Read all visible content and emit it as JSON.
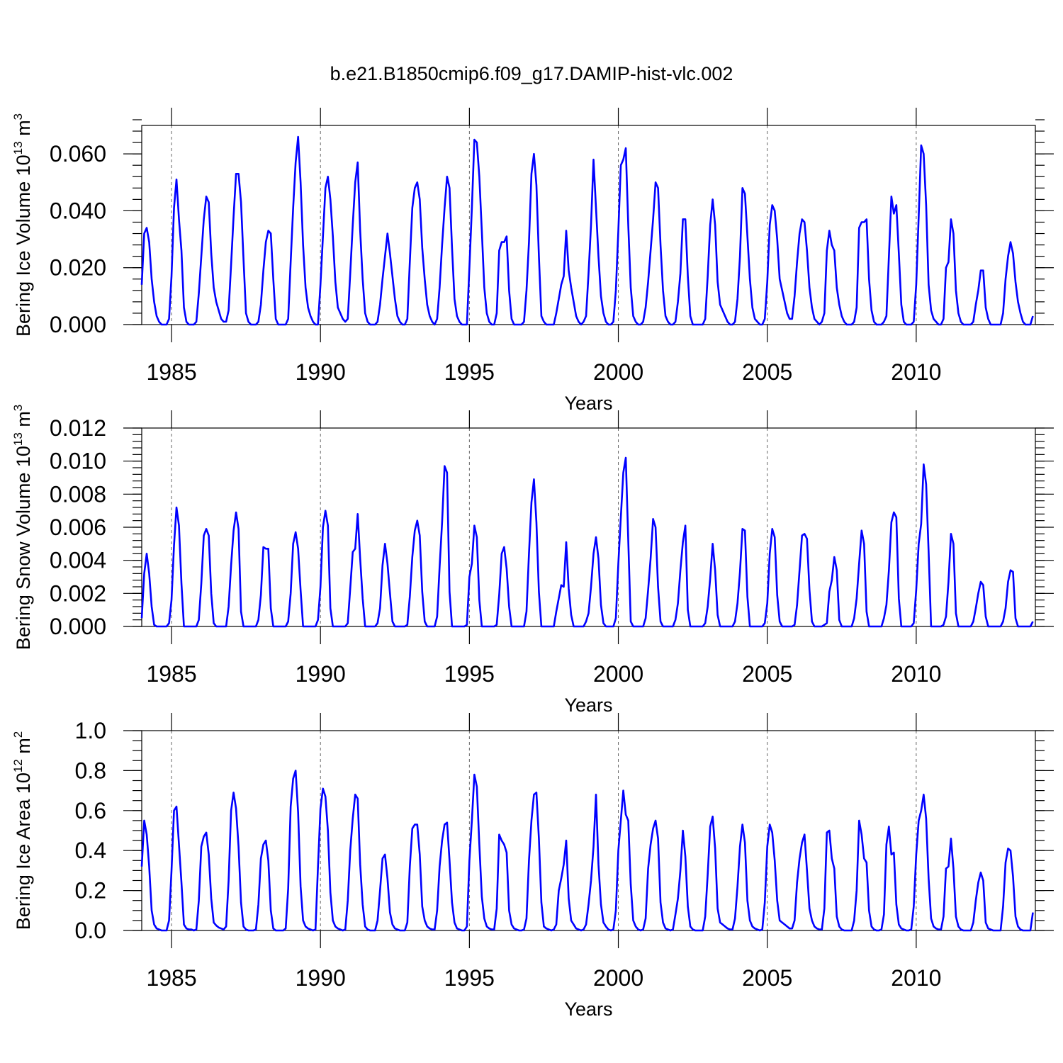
{
  "title": "b.e21.B1850cmip6.f09_g17.DAMIP-hist-vlc.002",
  "chart_data": [
    {
      "type": "line",
      "name": "ice-volume",
      "ylabel": "Bering Ice Volume 10",
      "ylabel_exp": "13",
      "ylabel_unit": " m",
      "ylabel_unit_exp": "3",
      "xlabel": "Years",
      "xlim": [
        1984.0,
        2014.0
      ],
      "ylim": [
        0.0,
        0.07
      ],
      "x_ticks": [
        1985,
        1990,
        1995,
        2000,
        2005,
        2010
      ],
      "x_tick_labels": [
        "1985",
        "1990",
        "1995",
        "2000",
        "2005",
        "2010"
      ],
      "y_ticks": [
        0.0,
        0.02,
        0.04,
        0.06
      ],
      "y_tick_labels": [
        "0.000",
        "0.020",
        "0.040",
        "0.060"
      ],
      "y_minor_step": 0.004,
      "grid": "dashed vertical at major x ticks",
      "color": "#0000ff",
      "series_points_per_year": 12,
      "start_year": 1984.0,
      "values": [
        0.014,
        0.032,
        0.034,
        0.029,
        0.016,
        0.008,
        0.003,
        0.001,
        0.0,
        0.0,
        0.0,
        0.002,
        0.017,
        0.041,
        0.051,
        0.037,
        0.026,
        0.006,
        0.001,
        0.0,
        0.0,
        0.0,
        0.001,
        0.011,
        0.024,
        0.037,
        0.045,
        0.043,
        0.025,
        0.013,
        0.008,
        0.005,
        0.002,
        0.001,
        0.001,
        0.005,
        0.021,
        0.038,
        0.053,
        0.053,
        0.043,
        0.023,
        0.004,
        0.001,
        0.0,
        0.0,
        0.0,
        0.001,
        0.007,
        0.019,
        0.029,
        0.033,
        0.032,
        0.016,
        0.002,
        0.0,
        0.0,
        0.0,
        0.0,
        0.002,
        0.022,
        0.041,
        0.057,
        0.066,
        0.05,
        0.028,
        0.013,
        0.006,
        0.003,
        0.001,
        0.0,
        0.0,
        0.014,
        0.031,
        0.048,
        0.052,
        0.044,
        0.031,
        0.015,
        0.006,
        0.004,
        0.002,
        0.001,
        0.002,
        0.018,
        0.035,
        0.05,
        0.057,
        0.033,
        0.016,
        0.004,
        0.001,
        0.0,
        0.0,
        0.0,
        0.001,
        0.007,
        0.016,
        0.024,
        0.032,
        0.025,
        0.017,
        0.009,
        0.003,
        0.001,
        0.0,
        0.0,
        0.002,
        0.022,
        0.041,
        0.048,
        0.05,
        0.044,
        0.027,
        0.016,
        0.007,
        0.003,
        0.001,
        0.0,
        0.002,
        0.013,
        0.028,
        0.041,
        0.052,
        0.048,
        0.027,
        0.009,
        0.003,
        0.001,
        0.0,
        0.0,
        0.0,
        0.02,
        0.041,
        0.065,
        0.064,
        0.052,
        0.033,
        0.013,
        0.004,
        0.001,
        0.0,
        0.0,
        0.004,
        0.026,
        0.029,
        0.029,
        0.031,
        0.012,
        0.002,
        0.0,
        0.0,
        0.0,
        0.0,
        0.001,
        0.012,
        0.029,
        0.053,
        0.06,
        0.049,
        0.024,
        0.003,
        0.001,
        0.0,
        0.0,
        0.0,
        0.0,
        0.004,
        0.009,
        0.014,
        0.017,
        0.033,
        0.019,
        0.013,
        0.008,
        0.003,
        0.001,
        0.0,
        0.001,
        0.003,
        0.018,
        0.035,
        0.058,
        0.041,
        0.024,
        0.01,
        0.004,
        0.001,
        0.0,
        0.0,
        0.001,
        0.012,
        0.033,
        0.056,
        0.058,
        0.062,
        0.035,
        0.013,
        0.003,
        0.001,
        0.0,
        0.0,
        0.001,
        0.006,
        0.015,
        0.026,
        0.037,
        0.05,
        0.048,
        0.028,
        0.012,
        0.003,
        0.001,
        0.0,
        0.0,
        0.001,
        0.008,
        0.018,
        0.037,
        0.037,
        0.017,
        0.003,
        0.0,
        0.0,
        0.0,
        0.0,
        0.0,
        0.002,
        0.017,
        0.035,
        0.044,
        0.035,
        0.015,
        0.007,
        0.005,
        0.003,
        0.001,
        0.0,
        0.0,
        0.001,
        0.009,
        0.024,
        0.048,
        0.046,
        0.031,
        0.016,
        0.006,
        0.002,
        0.001,
        0.0,
        0.0,
        0.002,
        0.015,
        0.035,
        0.042,
        0.04,
        0.03,
        0.016,
        0.012,
        0.008,
        0.004,
        0.002,
        0.002,
        0.01,
        0.022,
        0.032,
        0.037,
        0.036,
        0.026,
        0.013,
        0.006,
        0.002,
        0.001,
        0.0,
        0.001,
        0.004,
        0.026,
        0.033,
        0.028,
        0.026,
        0.013,
        0.007,
        0.003,
        0.001,
        0.0,
        0.0,
        0.0,
        0.001,
        0.006,
        0.034,
        0.036,
        0.036,
        0.037,
        0.016,
        0.005,
        0.001,
        0.0,
        0.0,
        0.0,
        0.001,
        0.003,
        0.024,
        0.045,
        0.039,
        0.042,
        0.025,
        0.007,
        0.001,
        0.0,
        0.0,
        0.0,
        0.001,
        0.014,
        0.038,
        0.063,
        0.06,
        0.042,
        0.014,
        0.005,
        0.002,
        0.001,
        0.0,
        0.0,
        0.002,
        0.02,
        0.022,
        0.037,
        0.032,
        0.012,
        0.004,
        0.001,
        0.0,
        0.0,
        0.0,
        0.0,
        0.001,
        0.007,
        0.012,
        0.019,
        0.019,
        0.006,
        0.002,
        0.0,
        0.0,
        0.0,
        0.0,
        0.0,
        0.004,
        0.016,
        0.024,
        0.029,
        0.025,
        0.015,
        0.008,
        0.004,
        0.001,
        0.0,
        0.0,
        0.0,
        0.003
      ]
    },
    {
      "type": "line",
      "name": "snow-volume",
      "ylabel": "Bering Snow Volume 10",
      "ylabel_exp": "13",
      "ylabel_unit": " m",
      "ylabel_unit_exp": "3",
      "xlabel": "Years",
      "xlim": [
        1984.0,
        2014.0
      ],
      "ylim": [
        0.0,
        0.012
      ],
      "x_ticks": [
        1985,
        1990,
        1995,
        2000,
        2005,
        2010
      ],
      "x_tick_labels": [
        "1985",
        "1990",
        "1995",
        "2000",
        "2005",
        "2010"
      ],
      "y_ticks": [
        0.0,
        0.002,
        0.004,
        0.006,
        0.008,
        0.01,
        0.012
      ],
      "y_tick_labels": [
        "0.000",
        "0.002",
        "0.004",
        "0.006",
        "0.008",
        "0.010",
        "0.012"
      ],
      "y_minor_step": 0.0004,
      "grid": "dashed vertical at major x ticks",
      "color": "#0000ff",
      "series_points_per_year": 12,
      "start_year": 1984.0,
      "values": [
        0.0005,
        0.0032,
        0.0044,
        0.0032,
        0.0012,
        0.0001,
        0.0,
        0.0,
        0.0,
        0.0,
        0.0,
        0.0002,
        0.0016,
        0.0049,
        0.0072,
        0.0061,
        0.0026,
        0.0,
        0.0,
        0.0,
        0.0,
        0.0,
        0.0,
        0.0004,
        0.0026,
        0.0055,
        0.0059,
        0.0055,
        0.002,
        0.0002,
        0.0,
        0.0,
        0.0,
        0.0,
        0.0,
        0.0012,
        0.0037,
        0.0058,
        0.0069,
        0.0059,
        0.0009,
        0.0,
        0.0,
        0.0,
        0.0,
        0.0,
        0.0,
        0.0004,
        0.0019,
        0.0048,
        0.0047,
        0.0047,
        0.0011,
        0.0,
        0.0,
        0.0,
        0.0,
        0.0,
        0.0,
        0.0003,
        0.002,
        0.005,
        0.0057,
        0.0047,
        0.0022,
        0.0,
        0.0,
        0.0,
        0.0,
        0.0,
        0.0,
        0.0004,
        0.0024,
        0.006,
        0.007,
        0.0061,
        0.0011,
        0.0,
        0.0,
        0.0,
        0.0,
        0.0,
        0.0,
        0.0002,
        0.0023,
        0.0045,
        0.0047,
        0.0068,
        0.0041,
        0.0017,
        0.0,
        0.0,
        0.0,
        0.0,
        0.0,
        0.0002,
        0.0011,
        0.0037,
        0.005,
        0.0038,
        0.002,
        0.0003,
        0.0,
        0.0,
        0.0,
        0.0,
        0.0,
        0.0001,
        0.0018,
        0.0042,
        0.0058,
        0.0064,
        0.0055,
        0.0021,
        0.0003,
        0.0,
        0.0,
        0.0,
        0.0,
        0.0006,
        0.0036,
        0.0063,
        0.0097,
        0.0093,
        0.0021,
        0.0,
        0.0,
        0.0,
        0.0,
        0.0,
        0.0,
        0.0001,
        0.003,
        0.0038,
        0.0061,
        0.0054,
        0.0016,
        0.0,
        0.0,
        0.0,
        0.0,
        0.0,
        0.0,
        0.0001,
        0.0019,
        0.0044,
        0.0048,
        0.0035,
        0.0012,
        0.0,
        0.0,
        0.0,
        0.0,
        0.0,
        0.0,
        0.0009,
        0.0044,
        0.0075,
        0.0089,
        0.0063,
        0.0021,
        0.0,
        0.0,
        0.0,
        0.0,
        0.0,
        0.0,
        0.0009,
        0.0017,
        0.0025,
        0.0024,
        0.0051,
        0.0023,
        0.0007,
        0.0,
        0.0,
        0.0,
        0.0,
        0.0,
        0.0003,
        0.0008,
        0.0024,
        0.0044,
        0.0054,
        0.0041,
        0.0013,
        0.0002,
        0.0,
        0.0,
        0.0,
        0.0,
        0.0005,
        0.0038,
        0.0066,
        0.0093,
        0.0102,
        0.0052,
        0.0003,
        0.0,
        0.0,
        0.0,
        0.0,
        0.0,
        0.0005,
        0.0022,
        0.0041,
        0.0065,
        0.006,
        0.0024,
        0.0003,
        0.0,
        0.0,
        0.0,
        0.0,
        0.0,
        0.0004,
        0.0014,
        0.0034,
        0.0051,
        0.0061,
        0.001,
        0.0,
        0.0,
        0.0,
        0.0,
        0.0,
        0.0,
        0.0002,
        0.0012,
        0.0029,
        0.005,
        0.0034,
        0.0007,
        0.0,
        0.0,
        0.0,
        0.0,
        0.0,
        0.0,
        0.0003,
        0.0014,
        0.0033,
        0.0059,
        0.0058,
        0.0018,
        0.0,
        0.0,
        0.0,
        0.0,
        0.0,
        0.0,
        0.0002,
        0.0014,
        0.0044,
        0.0059,
        0.0054,
        0.0019,
        0.0003,
        0.0,
        0.0,
        0.0,
        0.0,
        0.0,
        0.0001,
        0.0013,
        0.0034,
        0.0055,
        0.0056,
        0.0053,
        0.0022,
        0.0003,
        0.0,
        0.0,
        0.0,
        0.0,
        0.0001,
        0.0002,
        0.0021,
        0.0028,
        0.0042,
        0.0034,
        0.0004,
        0.0,
        0.0,
        0.0,
        0.0,
        0.0,
        0.0005,
        0.0017,
        0.0038,
        0.0058,
        0.005,
        0.0009,
        0.0,
        0.0,
        0.0,
        0.0,
        0.0,
        0.0,
        0.0005,
        0.0013,
        0.0034,
        0.0063,
        0.0069,
        0.0066,
        0.0017,
        0.0,
        0.0,
        0.0,
        0.0,
        0.0,
        0.0002,
        0.0022,
        0.005,
        0.0062,
        0.0098,
        0.0086,
        0.0045,
        0.0,
        0.0,
        0.0,
        0.0,
        0.0,
        0.0001,
        0.0006,
        0.0027,
        0.0056,
        0.005,
        0.0008,
        0.0,
        0.0,
        0.0,
        0.0,
        0.0,
        0.0,
        0.0003,
        0.0011,
        0.002,
        0.0027,
        0.0025,
        0.0006,
        0.0,
        0.0,
        0.0,
        0.0,
        0.0,
        0.0,
        0.0003,
        0.0011,
        0.0027,
        0.0034,
        0.0033,
        0.0005,
        0.0,
        0.0,
        0.0,
        0.0,
        0.0,
        0.0,
        0.0003
      ]
    },
    {
      "type": "line",
      "name": "ice-area",
      "ylabel": "Bering Ice Area 10",
      "ylabel_exp": "12",
      "ylabel_unit": " m",
      "ylabel_unit_exp": "2",
      "xlabel": "Years",
      "xlim": [
        1984.0,
        2014.0
      ],
      "ylim": [
        0.0,
        1.0
      ],
      "x_ticks": [
        1985,
        1990,
        1995,
        2000,
        2005,
        2010
      ],
      "x_tick_labels": [
        "1985",
        "1990",
        "1995",
        "2000",
        "2005",
        "2010"
      ],
      "y_ticks": [
        0.0,
        0.2,
        0.4,
        0.6,
        0.8,
        1.0
      ],
      "y_tick_labels": [
        "0.0",
        "0.2",
        "0.4",
        "0.6",
        "0.8",
        "1.0"
      ],
      "y_minor_step": 0.05,
      "grid": "dashed vertical at major x ticks",
      "color": "#0000ff",
      "series_points_per_year": 12,
      "start_year": 1984.0,
      "values": [
        0.32,
        0.55,
        0.48,
        0.32,
        0.1,
        0.03,
        0.01,
        0.005,
        0.0,
        0.0,
        0.0,
        0.05,
        0.3,
        0.6,
        0.62,
        0.43,
        0.24,
        0.03,
        0.01,
        0.005,
        0.005,
        0.0,
        0.005,
        0.15,
        0.42,
        0.47,
        0.49,
        0.38,
        0.16,
        0.04,
        0.025,
        0.015,
        0.01,
        0.005,
        0.02,
        0.25,
        0.6,
        0.69,
        0.61,
        0.42,
        0.14,
        0.02,
        0.005,
        0.0,
        0.0,
        0.0,
        0.005,
        0.13,
        0.36,
        0.43,
        0.45,
        0.35,
        0.1,
        0.01,
        0.0,
        0.0,
        0.0,
        0.0,
        0.01,
        0.21,
        0.62,
        0.76,
        0.8,
        0.59,
        0.22,
        0.05,
        0.02,
        0.01,
        0.005,
        0.0,
        0.005,
        0.32,
        0.61,
        0.71,
        0.67,
        0.5,
        0.19,
        0.05,
        0.02,
        0.01,
        0.005,
        0.0,
        0.005,
        0.15,
        0.4,
        0.56,
        0.68,
        0.66,
        0.33,
        0.13,
        0.02,
        0.005,
        0.0,
        0.0,
        0.0,
        0.05,
        0.2,
        0.36,
        0.38,
        0.26,
        0.09,
        0.03,
        0.01,
        0.005,
        0.0,
        0.0,
        0.0,
        0.04,
        0.32,
        0.51,
        0.53,
        0.53,
        0.38,
        0.12,
        0.05,
        0.02,
        0.01,
        0.005,
        0.005,
        0.1,
        0.32,
        0.45,
        0.53,
        0.54,
        0.35,
        0.14,
        0.04,
        0.01,
        0.005,
        0.0,
        0.0,
        0.02,
        0.35,
        0.55,
        0.78,
        0.72,
        0.43,
        0.17,
        0.06,
        0.02,
        0.01,
        0.005,
        0.005,
        0.11,
        0.48,
        0.45,
        0.43,
        0.39,
        0.1,
        0.03,
        0.01,
        0.005,
        0.0,
        0.0,
        0.005,
        0.06,
        0.35,
        0.55,
        0.68,
        0.69,
        0.46,
        0.14,
        0.02,
        0.01,
        0.005,
        0.0,
        0.005,
        0.03,
        0.2,
        0.26,
        0.33,
        0.45,
        0.16,
        0.05,
        0.03,
        0.01,
        0.005,
        0.0,
        0.005,
        0.03,
        0.13,
        0.25,
        0.42,
        0.68,
        0.33,
        0.13,
        0.04,
        0.02,
        0.005,
        0.0,
        0.005,
        0.1,
        0.4,
        0.55,
        0.7,
        0.58,
        0.55,
        0.23,
        0.05,
        0.02,
        0.005,
        0.0,
        0.005,
        0.06,
        0.31,
        0.43,
        0.51,
        0.55,
        0.46,
        0.14,
        0.04,
        0.01,
        0.005,
        0.0,
        0.005,
        0.08,
        0.16,
        0.3,
        0.5,
        0.37,
        0.12,
        0.02,
        0.005,
        0.0,
        0.0,
        0.0,
        0.0,
        0.07,
        0.28,
        0.52,
        0.57,
        0.41,
        0.11,
        0.04,
        0.03,
        0.02,
        0.01,
        0.005,
        0.005,
        0.06,
        0.22,
        0.42,
        0.53,
        0.44,
        0.15,
        0.05,
        0.02,
        0.01,
        0.005,
        0.0,
        0.005,
        0.14,
        0.42,
        0.53,
        0.49,
        0.35,
        0.15,
        0.05,
        0.04,
        0.03,
        0.02,
        0.01,
        0.01,
        0.05,
        0.24,
        0.36,
        0.44,
        0.48,
        0.3,
        0.11,
        0.05,
        0.02,
        0.01,
        0.005,
        0.005,
        0.11,
        0.49,
        0.5,
        0.36,
        0.31,
        0.07,
        0.02,
        0.005,
        0.0,
        0.0,
        0.0,
        0.0,
        0.05,
        0.2,
        0.55,
        0.48,
        0.36,
        0.34,
        0.1,
        0.02,
        0.005,
        0.0,
        0.0,
        0.005,
        0.08,
        0.43,
        0.52,
        0.38,
        0.39,
        0.13,
        0.03,
        0.01,
        0.005,
        0.0,
        0.0,
        0.005,
        0.12,
        0.38,
        0.55,
        0.6,
        0.68,
        0.56,
        0.26,
        0.06,
        0.02,
        0.01,
        0.005,
        0.005,
        0.07,
        0.31,
        0.32,
        0.46,
        0.31,
        0.07,
        0.02,
        0.005,
        0.0,
        0.0,
        0.0,
        0.0,
        0.04,
        0.15,
        0.24,
        0.29,
        0.25,
        0.04,
        0.01,
        0.005,
        0.0,
        0.0,
        0.0,
        0.0,
        0.12,
        0.34,
        0.41,
        0.4,
        0.27,
        0.07,
        0.02,
        0.005,
        0.0,
        0.0,
        0.0,
        0.0,
        0.09
      ]
    }
  ]
}
